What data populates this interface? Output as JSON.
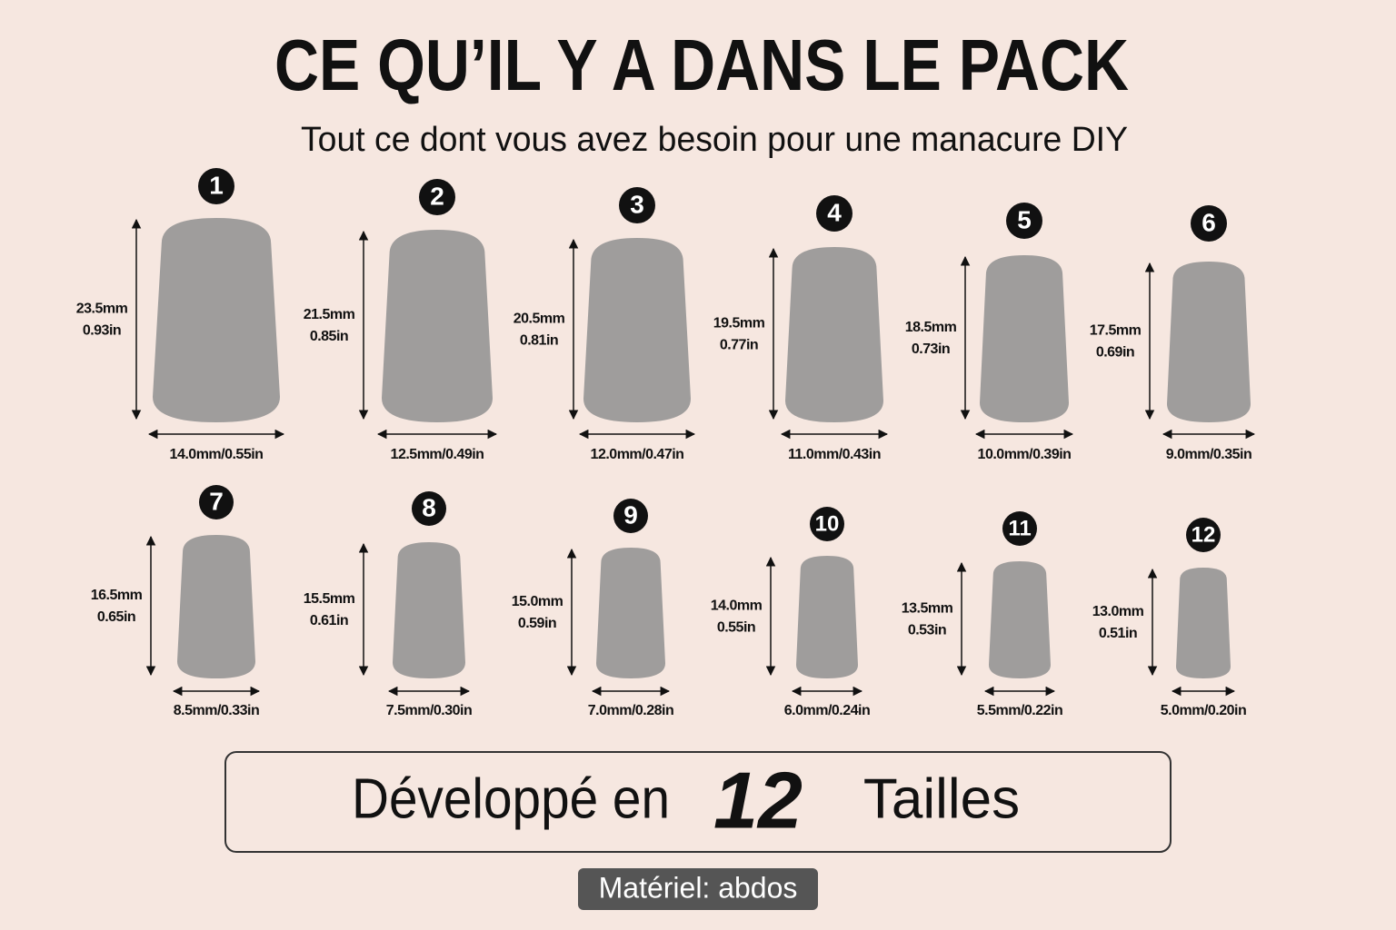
{
  "header": {
    "title": "CE QU’IL Y A DANS LE PACK",
    "subtitle": "Tout ce dont vous avez besoin pour une manacure DIY"
  },
  "nails": [
    {
      "number": "1",
      "height_mm": "23.5mm",
      "height_in": "0.93in",
      "width": "14.0mm/0.55in"
    },
    {
      "number": "2",
      "height_mm": "21.5mm",
      "height_in": "0.85in",
      "width": "12.5mm/0.49in"
    },
    {
      "number": "3",
      "height_mm": "20.5mm",
      "height_in": "0.81in",
      "width": "12.0mm/0.47in"
    },
    {
      "number": "4",
      "height_mm": "19.5mm",
      "height_in": "0.77in",
      "width": "11.0mm/0.43in"
    },
    {
      "number": "5",
      "height_mm": "18.5mm",
      "height_in": "0.73in",
      "width": "10.0mm/0.39in"
    },
    {
      "number": "6",
      "height_mm": "17.5mm",
      "height_in": "0.69in",
      "width": "9.0mm/0.35in"
    },
    {
      "number": "7",
      "height_mm": "16.5mm",
      "height_in": "0.65in",
      "width": "8.5mm/0.33in"
    },
    {
      "number": "8",
      "height_mm": "15.5mm",
      "height_in": "0.61in",
      "width": "7.5mm/0.30in"
    },
    {
      "number": "9",
      "height_mm": "15.0mm",
      "height_in": "0.59in",
      "width": "7.0mm/0.28in"
    },
    {
      "number": "10",
      "height_mm": "14.0mm",
      "height_in": "0.55in",
      "width": "6.0mm/0.24in"
    },
    {
      "number": "11",
      "height_mm": "13.5mm",
      "height_in": "0.53in",
      "width": "5.5mm/0.22in"
    },
    {
      "number": "12",
      "height_mm": "13.0mm",
      "height_in": "0.51in",
      "width": "5.0mm/0.20in"
    }
  ],
  "banner": {
    "prefix": "Développé en",
    "count": "12",
    "suffix": "Tailles"
  },
  "footer": "Matériel: abdos"
}
